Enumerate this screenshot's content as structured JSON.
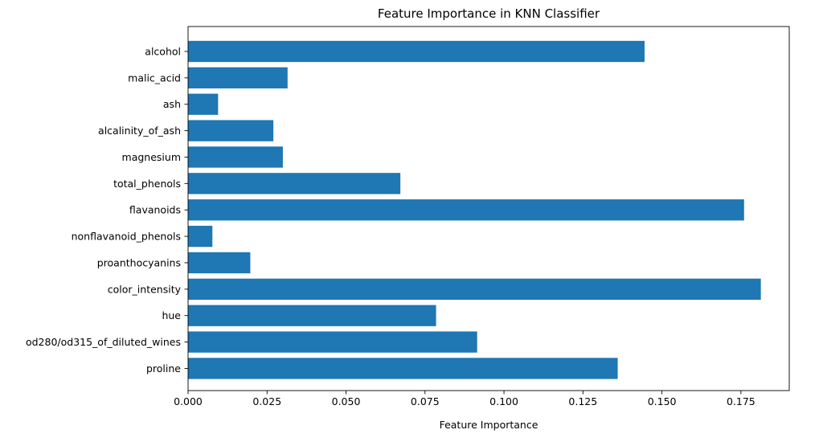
{
  "chart_data": {
    "type": "bar",
    "orientation": "horizontal",
    "title": "Feature Importance in KNN Classifier",
    "xlabel": "Feature Importance",
    "ylabel": "",
    "categories": [
      "alcohol",
      "malic_acid",
      "ash",
      "alcalinity_of_ash",
      "magnesium",
      "total_phenols",
      "flavanoids",
      "nonflavanoid_phenols",
      "proanthocyanins",
      "color_intensity",
      "hue",
      "od280/od315_of_diluted_wines",
      "proline"
    ],
    "values": [
      0.1445,
      0.0315,
      0.0095,
      0.027,
      0.03,
      0.0672,
      0.176,
      0.0077,
      0.0197,
      0.1813,
      0.0785,
      0.0915,
      0.136
    ],
    "xlim": [
      0,
      0.1903
    ],
    "xticks": [
      "0.000",
      "0.025",
      "0.050",
      "0.075",
      "0.100",
      "0.125",
      "0.150",
      "0.175"
    ],
    "xtick_values": [
      0,
      0.025,
      0.05,
      0.075,
      0.1,
      0.125,
      0.15,
      0.175
    ],
    "grid": false,
    "legend": "none",
    "bar_color": "#1f77b4"
  }
}
